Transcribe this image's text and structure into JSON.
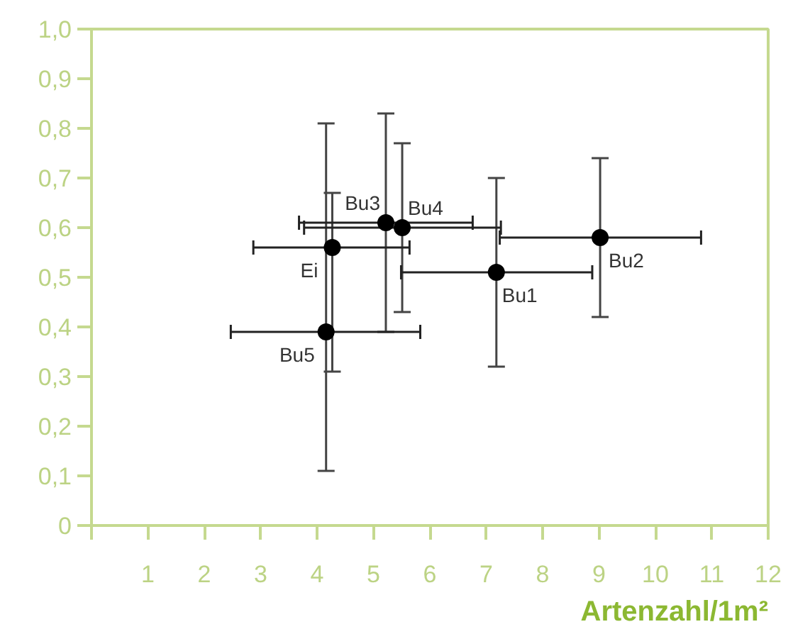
{
  "chart_data": {
    "type": "scatter",
    "xlabel": "Artenzahl/1m²",
    "x": [
      5.22,
      5.51,
      4.27,
      4.16,
      7.18,
      9.02
    ],
    "values": [
      0.61,
      0.6,
      0.56,
      0.39,
      0.51,
      0.58
    ],
    "errors": [
      [
        0.39,
        0.83
      ],
      [
        0.43,
        0.77
      ],
      [
        0.31,
        0.67
      ],
      [
        0.11,
        0.81
      ],
      [
        0.32,
        0.7
      ],
      [
        0.42,
        0.74
      ]
    ],
    "xerrors": [
      [
        3.68,
        6.76
      ],
      [
        3.77,
        7.26
      ],
      [
        2.87,
        5.64
      ],
      [
        2.47,
        5.83
      ],
      [
        5.49,
        8.88
      ],
      [
        7.24,
        10.81
      ]
    ],
    "color": "#000000",
    "marker": "circle",
    "grid": false,
    "annotations": [
      {
        "text": "Bu3",
        "x": 5.22,
        "y": 0.61
      },
      {
        "text": "Bu4",
        "x": 5.51,
        "y": 0.6
      },
      {
        "text": "Ei",
        "x": 4.27,
        "y": 0.56
      },
      {
        "text": "Bu5",
        "x": 4.16,
        "y": 0.39
      },
      {
        "text": "Bu1",
        "x": 7.18,
        "y": 0.51
      },
      {
        "text": "Bu2",
        "x": 9.02,
        "y": 0.58
      }
    ],
    "xlim": [
      0,
      12
    ],
    "ylim": [
      0,
      1
    ],
    "xticks": [
      {
        "value": 0,
        "label": null
      },
      1,
      2,
      3,
      4,
      5,
      6,
      7,
      8,
      9,
      10,
      11,
      12
    ],
    "yticks": [
      {
        "value": 0,
        "label": "0"
      },
      {
        "value": 0.1,
        "label": "0,1"
      },
      {
        "value": 0.2,
        "label": "0,2"
      },
      {
        "value": 0.3,
        "label": "0,3"
      },
      {
        "value": 0.4,
        "label": "0,4"
      },
      {
        "value": 0.5,
        "label": "0,5"
      },
      {
        "value": 0.6,
        "label": "0,6"
      },
      {
        "value": 0.7,
        "label": "0,7"
      },
      {
        "value": 0.8,
        "label": "0,8"
      },
      {
        "value": 0.9,
        "label": "0,9"
      },
      {
        "value": 1,
        "label": "1,0"
      }
    ]
  }
}
